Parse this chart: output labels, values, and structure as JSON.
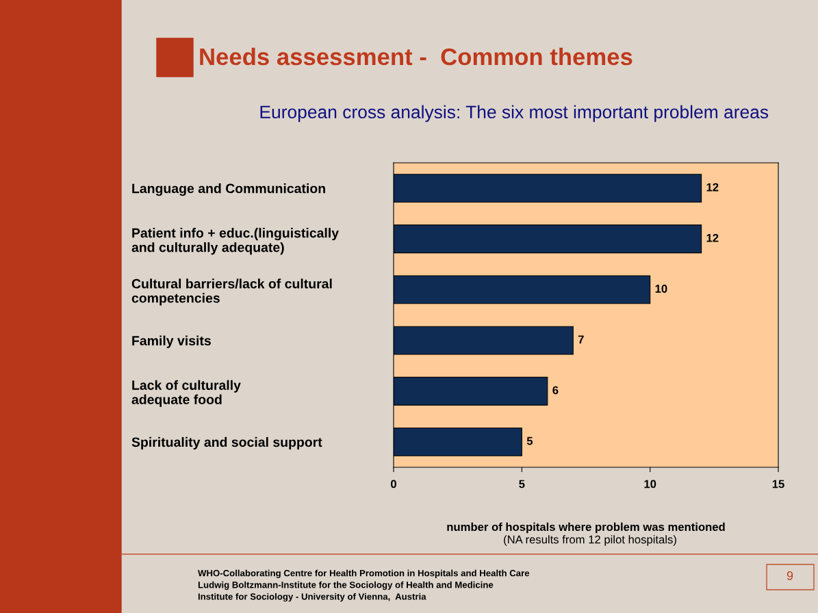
{
  "chart_data": {
    "type": "bar",
    "orientation": "horizontal",
    "title": "Needs assessment -  Common themes",
    "subtitle": "European cross analysis: The six most important problem areas",
    "categories": [
      "Language and Communication",
      "Patient info + educ.(linguistically\nand culturally adequate)",
      "Cultural barriers/lack of cultural\ncompetencies",
      "Family visits",
      "Lack of culturally\nadequate food",
      "Spirituality and social support"
    ],
    "values": [
      12,
      12,
      10,
      7,
      6,
      5
    ],
    "color": "#0f2c55",
    "data_labels": true,
    "xlim": [
      0,
      15
    ],
    "xticks": [
      0,
      5,
      10,
      15
    ],
    "xlabel": "number of hospitals where problem was mentioned",
    "grid": false,
    "legend": false,
    "annotations": [
      "(NA results from 12 pilot hospitals)",
      "WHO-Collaborating Centre for Health Promotion in Hospitals and Health Care\nLudwig Boltzmann-Institute for the Sociology of Health and Medicine\nInstitute for Sociology - University of Vienna,  Austria",
      "9"
    ]
  }
}
